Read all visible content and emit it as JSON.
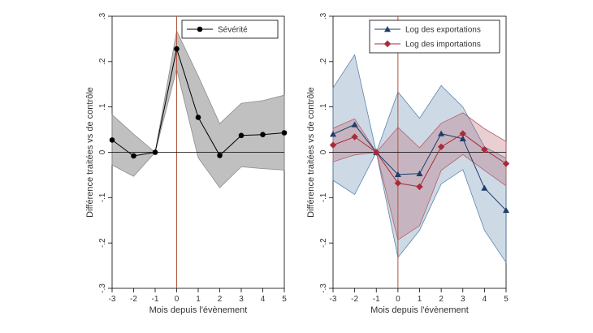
{
  "chart_data": [
    {
      "type": "line",
      "xlabel": "Mois depuis l'évènement",
      "ylabel": "Différence traitées vs de contrôle",
      "xlim": [
        -3,
        5
      ],
      "ylim": [
        -0.3,
        0.3
      ],
      "x_ticks": [
        -3,
        -2,
        -1,
        0,
        1,
        2,
        3,
        4,
        5
      ],
      "x_tick_labels": [
        "-3",
        "-2",
        "-1",
        "0",
        "1",
        "2",
        "3",
        "4",
        "5"
      ],
      "y_ticks": [
        -0.3,
        -0.2,
        -0.1,
        0,
        0.1,
        0.2,
        0.3
      ],
      "y_tick_labels": [
        "-.3",
        "-.2",
        "-.1",
        "0",
        ".1",
        ".2",
        ".3"
      ],
      "grid": false,
      "event_line_x": 0,
      "zero_line": true,
      "legend_position": "top-right",
      "x": [
        -3,
        -2,
        -1,
        0,
        1,
        2,
        3,
        4,
        5
      ],
      "series": [
        {
          "name": "Sévérité",
          "marker": "circle",
          "color": "#000000",
          "band_color": "#8c8c8c",
          "values": [
            0.027,
            -0.008,
            0.0,
            0.228,
            0.077,
            -0.007,
            0.037,
            0.039,
            0.043
          ],
          "lower": [
            -0.028,
            -0.053,
            0.0,
            0.183,
            -0.012,
            -0.078,
            -0.032,
            -0.036,
            -0.039
          ],
          "upper": [
            0.083,
            0.04,
            0.0,
            0.268,
            0.168,
            0.063,
            0.108,
            0.114,
            0.126
          ]
        }
      ]
    },
    {
      "type": "line",
      "xlabel": "Mois depuis l'évènement",
      "ylabel": "Différence traitées vs de contrôle",
      "xlim": [
        -3,
        5
      ],
      "ylim": [
        -0.3,
        0.3
      ],
      "x_ticks": [
        -3,
        -2,
        -1,
        0,
        1,
        2,
        3,
        4,
        5
      ],
      "x_tick_labels": [
        "-3",
        "-2",
        "-1",
        "0",
        "1",
        "2",
        "3",
        "4",
        "5"
      ],
      "y_ticks": [
        -0.3,
        -0.2,
        -0.1,
        0,
        0.1,
        0.2,
        0.3
      ],
      "y_tick_labels": [
        "-.3",
        "-.2",
        "-.1",
        "0",
        ".1",
        ".2",
        ".3"
      ],
      "grid": false,
      "event_line_x": 0,
      "zero_line": true,
      "legend_position": "top-right",
      "x": [
        -3,
        -2,
        -1,
        0,
        1,
        2,
        3,
        4,
        5
      ],
      "series": [
        {
          "name": "Log des exportations",
          "marker": "triangle",
          "color": "#1f3d6b",
          "band_color": "#5b84ad",
          "values": [
            0.04,
            0.061,
            0.0,
            -0.049,
            -0.047,
            0.041,
            0.03,
            -0.079,
            -0.128
          ],
          "lower": [
            -0.062,
            -0.093,
            0.0,
            -0.232,
            -0.172,
            -0.07,
            -0.038,
            -0.172,
            -0.243
          ],
          "upper": [
            0.142,
            0.215,
            0.0,
            0.133,
            0.075,
            0.147,
            0.1,
            0.012,
            -0.013
          ]
        },
        {
          "name": "Log des importations",
          "marker": "diamond",
          "color": "#a82b3a",
          "band_color": "#b5616a",
          "values": [
            0.016,
            0.034,
            0.0,
            -0.068,
            -0.076,
            0.012,
            0.041,
            0.006,
            -0.025
          ],
          "lower": [
            -0.021,
            -0.006,
            0.0,
            -0.193,
            -0.162,
            -0.04,
            -0.005,
            -0.04,
            -0.074
          ],
          "upper": [
            0.053,
            0.074,
            0.0,
            0.055,
            0.01,
            0.064,
            0.087,
            0.052,
            0.024
          ]
        }
      ]
    }
  ]
}
